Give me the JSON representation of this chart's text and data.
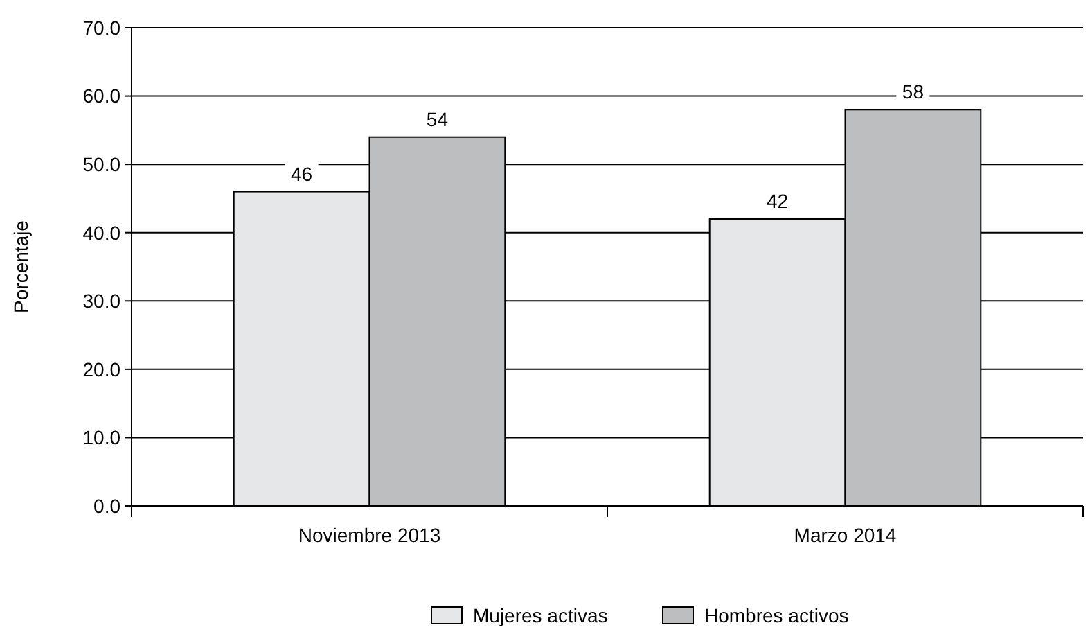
{
  "chart_data": {
    "type": "bar",
    "ylabel": "Porcentaje",
    "categories": [
      "Noviembre 2013",
      "Marzo 2014"
    ],
    "series": [
      {
        "name": "Mujeres activas",
        "color": "#e6e7e8",
        "values": [
          46,
          42
        ]
      },
      {
        "name": "Hombres activos",
        "color": "#bcbec0",
        "values": [
          54,
          58
        ]
      }
    ],
    "ylim": [
      0,
      70
    ],
    "yticks": [
      {
        "value": 0,
        "label": "0.0"
      },
      {
        "value": 10,
        "label": "10.0"
      },
      {
        "value": 20,
        "label": "20.0"
      },
      {
        "value": 30,
        "label": "30.0"
      },
      {
        "value": 40,
        "label": "40.0"
      },
      {
        "value": 50,
        "label": "50.0"
      },
      {
        "value": 60,
        "label": "60.0"
      },
      {
        "value": 70,
        "label": "70.0"
      }
    ],
    "grid": "y",
    "data_labels": true,
    "legend": "bottom"
  }
}
